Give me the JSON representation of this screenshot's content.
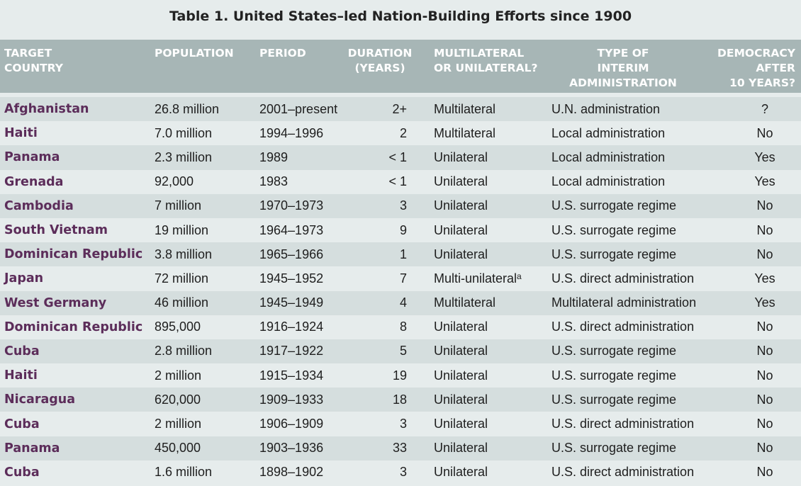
{
  "title": "Table 1. United States–led Nation-Building Efforts since 1900",
  "headers": {
    "country": [
      "TARGET",
      "COUNTRY"
    ],
    "population": [
      "POPULATION"
    ],
    "period": [
      "PERIOD"
    ],
    "duration": [
      "DURATION",
      "(YEARS)"
    ],
    "lateral": [
      "MULTILATERAL",
      "OR UNILATERAL?"
    ],
    "admin": [
      "TYPE OF",
      "INTERIM",
      "ADMINISTRATION"
    ],
    "democracy": [
      "DEMOCRACY",
      "AFTER",
      "10 YEARS?"
    ]
  },
  "rows": [
    {
      "country": "Afghanistan",
      "population": "26.8 million",
      "period": "2001–present",
      "duration": "2+",
      "lateral": "Multilateral",
      "admin": "U.N. administration",
      "democracy": "?"
    },
    {
      "country": "Haiti",
      "population": "7.0 million",
      "period": "1994–1996",
      "duration": "2",
      "lateral": "Multilateral",
      "admin": "Local administration",
      "democracy": "No"
    },
    {
      "country": "Panama",
      "population": "2.3 million",
      "period": "1989",
      "duration": "< 1",
      "lateral": "Unilateral",
      "admin": "Local administration",
      "democracy": "Yes"
    },
    {
      "country": "Grenada",
      "population": "92,000",
      "period": "1983",
      "duration": "< 1",
      "lateral": "Unilateral",
      "admin": "Local administration",
      "democracy": "Yes"
    },
    {
      "country": "Cambodia",
      "population": "7 million",
      "period": "1970–1973",
      "duration": "3",
      "lateral": "Unilateral",
      "admin": "U.S. surrogate regime",
      "democracy": "No"
    },
    {
      "country": "South Vietnam",
      "population": "19 million",
      "period": "1964–1973",
      "duration": "9",
      "lateral": "Unilateral",
      "admin": "U.S. surrogate regime",
      "democracy": "No"
    },
    {
      "country": "Dominican Republic",
      "population": "3.8 million",
      "period": "1965–1966",
      "duration": "1",
      "lateral": "Unilateral",
      "admin": "U.S. surrogate regime",
      "democracy": "No"
    },
    {
      "country": "Japan",
      "population": "72 million",
      "period": "1945–1952",
      "duration": "7",
      "lateral": "Multi-unilateral",
      "lateral_sup": "a",
      "admin": "U.S. direct administration",
      "democracy": "Yes"
    },
    {
      "country": "West Germany",
      "population": "46 million",
      "period": "1945–1949",
      "duration": "4",
      "lateral": "Multilateral",
      "admin": "Multilateral administration",
      "democracy": "Yes"
    },
    {
      "country": "Dominican Republic",
      "population": "895,000",
      "period": "1916–1924",
      "duration": "8",
      "lateral": "Unilateral",
      "admin": "U.S. direct administration",
      "democracy": "No"
    },
    {
      "country": "Cuba",
      "population": "2.8 million",
      "period": "1917–1922",
      "duration": "5",
      "lateral": "Unilateral",
      "admin": "U.S. surrogate regime",
      "democracy": "No"
    },
    {
      "country": "Haiti",
      "population": "2 million",
      "period": "1915–1934",
      "duration": "19",
      "lateral": "Unilateral",
      "admin": "U.S. surrogate regime",
      "democracy": "No"
    },
    {
      "country": "Nicaragua",
      "population": "620,000",
      "period": "1909–1933",
      "duration": "18",
      "lateral": "Unilateral",
      "admin": "U.S. surrogate regime",
      "democracy": "No"
    },
    {
      "country": "Cuba",
      "population": "2 million",
      "period": "1906–1909",
      "duration": "3",
      "lateral": "Unilateral",
      "admin": "U.S. direct administration",
      "democracy": "No"
    },
    {
      "country": "Panama",
      "population": "450,000",
      "period": "1903–1936",
      "duration": "33",
      "lateral": "Unilateral",
      "admin": "U.S. surrogate regime",
      "democracy": "No"
    },
    {
      "country": "Cuba",
      "population": "1.6 million",
      "period": "1898–1902",
      "duration": "3",
      "lateral": "Unilateral",
      "admin": "U.S. direct administration",
      "democracy": "No"
    }
  ],
  "colors": {
    "header_bg": "#a7b6b6",
    "country_text": "#5c2d5a",
    "row_light": "#e6ecec",
    "row_dark": "#d5dede"
  }
}
